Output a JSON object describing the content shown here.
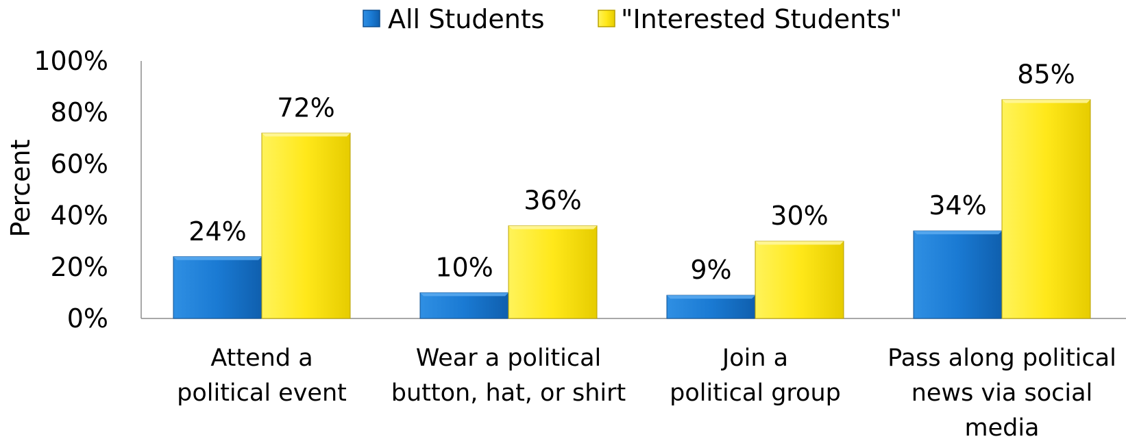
{
  "chart_data": {
    "type": "bar",
    "title": "",
    "xlabel": "",
    "ylabel": "Percent",
    "ylim": [
      0,
      100
    ],
    "y_ticks": [
      "0%",
      "20%",
      "40%",
      "60%",
      "80%",
      "100%"
    ],
    "grid": false,
    "legend_position": "top-center",
    "categories": [
      [
        "Attend a",
        "political event"
      ],
      [
        "Wear a political",
        "button, hat, or shirt"
      ],
      [
        "Join a",
        "political group"
      ],
      [
        "Pass along political",
        "news via social",
        "media"
      ]
    ],
    "series": [
      {
        "name": "All Students",
        "color": "#1874CD",
        "values": [
          24,
          10,
          9,
          34
        ],
        "labels": [
          "24%",
          "10%",
          "9%",
          "34%"
        ]
      },
      {
        "name": "\"Interested Students\"",
        "color": "#FFEE1C",
        "values": [
          72,
          36,
          30,
          85
        ],
        "labels": [
          "72%",
          "36%",
          "30%",
          "85%"
        ]
      }
    ]
  }
}
